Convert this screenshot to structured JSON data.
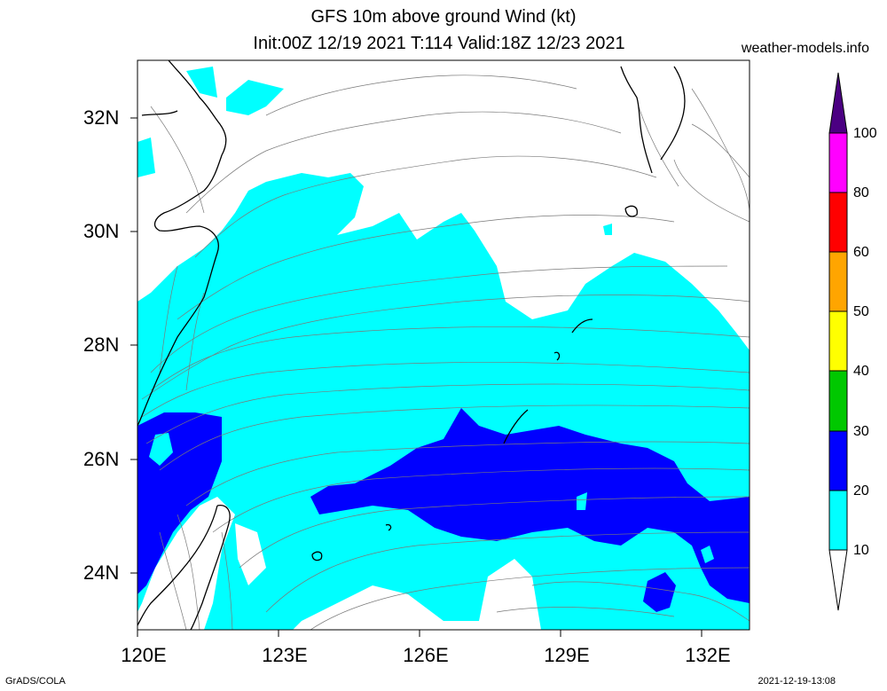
{
  "title": {
    "line1": "GFS 10m above ground Wind (kt)",
    "line2": "Init:00Z 12/19 2021 T:114 Valid:18Z 12/23 2021"
  },
  "source": "weather-models.info",
  "map": {
    "lon_range": [
      120,
      133
    ],
    "lat_range": [
      23,
      33
    ],
    "x_ticks": [
      "120E",
      "123E",
      "126E",
      "129E",
      "132E"
    ],
    "y_ticks": [
      "32N",
      "30N",
      "28N",
      "26N",
      "24N"
    ]
  },
  "colorbar": {
    "levels": [
      "10",
      "20",
      "30",
      "40",
      "50",
      "60",
      "80",
      "100"
    ],
    "colors": [
      "#ffffff",
      "#00ffff",
      "#0000ff",
      "#00c800",
      "#ffff00",
      "#ffa500",
      "#ff0000",
      "#ff00ff",
      "#4b0082"
    ]
  },
  "footer": {
    "left": "GrADS/COLA",
    "right": "2021-12-19-13:08"
  }
}
